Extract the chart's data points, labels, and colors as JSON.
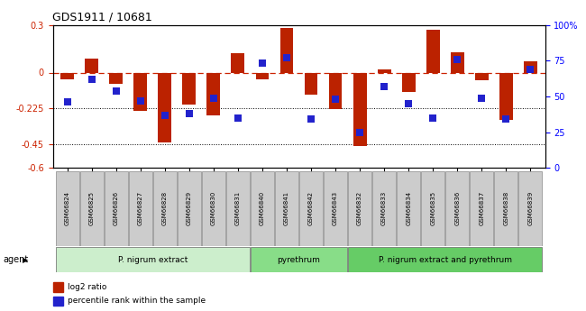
{
  "title": "GDS1911 / 10681",
  "samples": [
    "GSM66824",
    "GSM66825",
    "GSM66826",
    "GSM66827",
    "GSM66828",
    "GSM66829",
    "GSM66830",
    "GSM66831",
    "GSM66840",
    "GSM66841",
    "GSM66842",
    "GSM66843",
    "GSM66832",
    "GSM66833",
    "GSM66834",
    "GSM66835",
    "GSM66836",
    "GSM66837",
    "GSM66838",
    "GSM66839"
  ],
  "log2_ratio": [
    -0.04,
    0.09,
    -0.07,
    -0.24,
    -0.44,
    -0.2,
    -0.27,
    0.12,
    -0.04,
    0.28,
    -0.14,
    -0.23,
    -0.46,
    0.02,
    -0.12,
    0.27,
    0.13,
    -0.05,
    -0.3,
    0.07
  ],
  "percentile": [
    46,
    62,
    54,
    47,
    37,
    38,
    49,
    35,
    73,
    77,
    34,
    48,
    25,
    57,
    45,
    35,
    76,
    49,
    34,
    69
  ],
  "bar_color": "#bb2200",
  "dot_color": "#2222cc",
  "ylim_left": [
    -0.6,
    0.3
  ],
  "ylim_right": [
    0,
    100
  ],
  "yticks_left": [
    0.3,
    0.0,
    -0.225,
    -0.45,
    -0.6
  ],
  "yticks_right": [
    100,
    75,
    50,
    25,
    0
  ],
  "ytick_labels_left": [
    "0.3",
    "0",
    "-0.225",
    "-0.45",
    "-0.6"
  ],
  "ytick_labels_right": [
    "100%",
    "75",
    "50",
    "25",
    "0"
  ],
  "hline_zero": 0.0,
  "hline_dotted1": -0.225,
  "hline_dotted2": -0.45,
  "agent_groups": [
    {
      "label": "P. nigrum extract",
      "start": 0,
      "end": 8,
      "color": "#cceecc"
    },
    {
      "label": "pyrethrum",
      "start": 8,
      "end": 12,
      "color": "#88dd88"
    },
    {
      "label": "P. nigrum extract and pyrethrum",
      "start": 12,
      "end": 20,
      "color": "#66cc66"
    }
  ],
  "legend_items": [
    {
      "label": "log2 ratio",
      "color": "#bb2200"
    },
    {
      "label": "percentile rank within the sample",
      "color": "#2222cc"
    }
  ],
  "agent_label": "agent",
  "background_color": "#ffffff",
  "bar_width": 0.55,
  "dot_size": 28
}
